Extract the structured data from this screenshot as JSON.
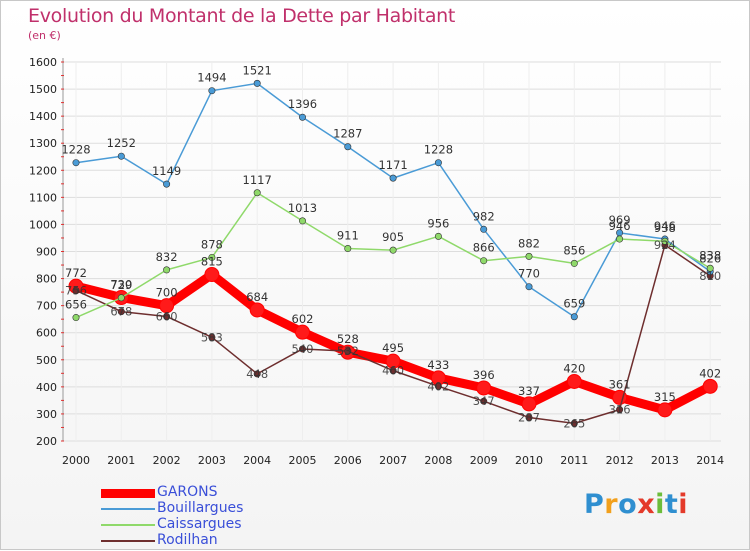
{
  "header": {
    "title": "Evolution du Montant de la Dette par Habitant",
    "subtitle": "(en €)"
  },
  "logo": {
    "letters": [
      "P",
      "r",
      "o",
      "x",
      "i",
      "t",
      "i"
    ],
    "colors": [
      "#2f8fd0",
      "#f2a01c",
      "#2f8fd0",
      "#e43a2a",
      "#6cbd3a",
      "#2f8fd0",
      "#e43a2a"
    ]
  },
  "chart_data": {
    "type": "line",
    "x": [
      "2000",
      "2001",
      "2002",
      "2003",
      "2004",
      "2005",
      "2006",
      "2007",
      "2008",
      "2009",
      "2010",
      "2011",
      "2012",
      "2013",
      "2014"
    ],
    "ylim": [
      200,
      1600
    ],
    "yticks": [
      200,
      300,
      400,
      500,
      600,
      700,
      800,
      900,
      1000,
      1100,
      1200,
      1300,
      1400,
      1500,
      1600
    ],
    "grid": true,
    "legend_position": "bottom-left",
    "series": [
      {
        "name": "GARONS",
        "color": "#ff0000",
        "values": [
          772,
          730,
          700,
          815,
          684,
          602,
          528,
          495,
          433,
          396,
          337,
          420,
          361,
          315,
          402
        ],
        "labels": [
          "772",
          "730",
          "700",
          "815",
          "684",
          "602",
          "528",
          "495",
          "433",
          "396",
          "337",
          "420",
          "361",
          "315",
          "402"
        ]
      },
      {
        "name": "Bouillargues",
        "color": "#4a9bd6",
        "values": [
          1228,
          1252,
          1149,
          1494,
          1521,
          1396,
          1287,
          1171,
          1228,
          982,
          770,
          659,
          969,
          946,
          826
        ],
        "labels": [
          "1228",
          "1252",
          "1149",
          "1494",
          "1521",
          "1396",
          "1287",
          "1171",
          "1228",
          "982",
          "770",
          "659",
          "969",
          "946",
          "826"
        ]
      },
      {
        "name": "Caissargues",
        "color": "#8fd96a",
        "values": [
          656,
          729,
          832,
          878,
          1117,
          1013,
          911,
          905,
          956,
          866,
          882,
          856,
          946,
          938,
          838
        ],
        "labels": [
          "656",
          "729",
          "832",
          "878",
          "1117",
          "1013",
          "911",
          "905",
          "956",
          "866",
          "882",
          "856",
          "946",
          "938",
          "838"
        ]
      },
      {
        "name": "Rodilhan",
        "color": "#6e2e2e",
        "values": [
          756,
          678,
          660,
          583,
          448,
          540,
          532,
          460,
          402,
          347,
          287,
          265,
          316,
          924,
          810
        ],
        "labels": [
          "756",
          "678",
          "660",
          "583",
          "448",
          "540",
          "532",
          "460",
          "402",
          "347",
          "287",
          "265",
          "316",
          "924",
          "810"
        ]
      }
    ]
  }
}
